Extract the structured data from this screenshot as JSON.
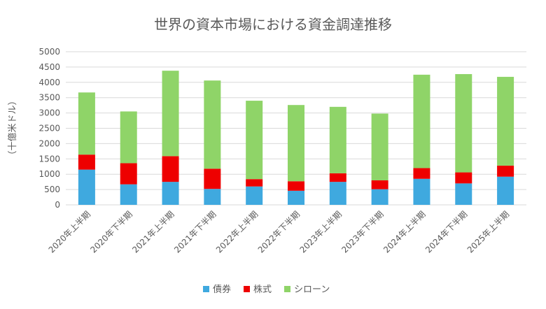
{
  "chart_data": {
    "type": "bar",
    "stacked": true,
    "title": "世界の資本市場における資金調達推移",
    "ylabel": "（十億米ドル）",
    "xlabel": "",
    "ylim": [
      0,
      5000
    ],
    "yticks": [
      0,
      500,
      1000,
      1500,
      2000,
      2500,
      3000,
      3500,
      4000,
      4500,
      5000
    ],
    "grid": true,
    "legend_position": "bottom",
    "categories": [
      "2020年上半期",
      "2020年下半期",
      "2021年上半期",
      "2021年下半期",
      "2022年上半期",
      "2022年下半期",
      "2023年上半期",
      "2023年下半期",
      "2024年上半期",
      "2024年下半期",
      "2025年上半期"
    ],
    "series": [
      {
        "name": "債券",
        "color": "#3FA9DF",
        "values": [
          1150,
          670,
          750,
          520,
          600,
          460,
          750,
          510,
          850,
          700,
          920
        ]
      },
      {
        "name": "株式",
        "color": "#EE0000",
        "values": [
          490,
          690,
          840,
          660,
          240,
          310,
          280,
          290,
          350,
          360,
          360
        ]
      },
      {
        "name": "シローン",
        "color": "#8FD468",
        "values": [
          2030,
          1690,
          2790,
          2880,
          2560,
          2490,
          2170,
          2180,
          3050,
          3210,
          2900
        ]
      }
    ]
  }
}
